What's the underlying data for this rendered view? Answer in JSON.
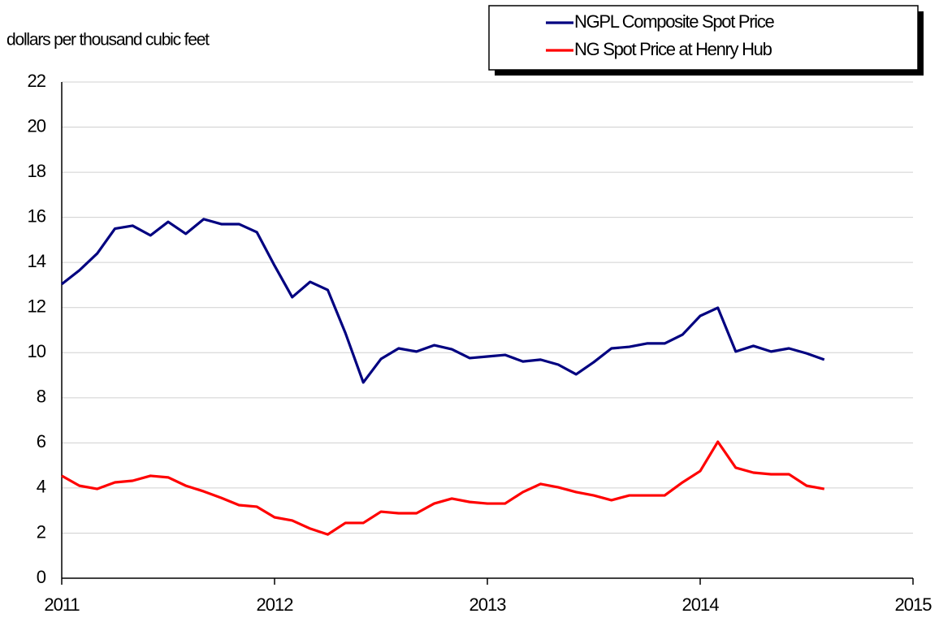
{
  "chart_data": {
    "type": "line",
    "y_label": "dollars per thousand cubic feet",
    "x": [
      2011,
      2011.083,
      2011.167,
      2011.25,
      2011.333,
      2011.417,
      2011.5,
      2011.583,
      2011.667,
      2011.75,
      2011.833,
      2011.917,
      2012,
      2012.083,
      2012.167,
      2012.25,
      2012.333,
      2012.417,
      2012.5,
      2012.583,
      2012.667,
      2012.75,
      2012.833,
      2012.917,
      2013,
      2013.083,
      2013.167,
      2013.25,
      2013.333,
      2013.417,
      2013.5,
      2013.583,
      2013.667,
      2013.75,
      2013.833,
      2013.917,
      2014,
      2014.083,
      2014.167,
      2014.25,
      2014.333,
      2014.417,
      2014.5,
      2014.583
    ],
    "series": [
      {
        "name": "NGPL Composite Spot Price",
        "color": "#000080",
        "values": [
          13.04,
          13.65,
          14.4,
          15.5,
          15.63,
          15.2,
          15.8,
          15.27,
          15.92,
          15.7,
          15.7,
          15.34,
          13.86,
          12.46,
          13.14,
          12.78,
          10.87,
          8.68,
          9.72,
          10.19,
          10.05,
          10.33,
          10.15,
          9.76,
          9.83,
          9.9,
          9.61,
          9.69,
          9.47,
          9.04,
          9.58,
          10.19,
          10.26,
          10.41,
          10.41,
          10.8,
          11.63,
          11.99,
          10.05,
          10.3,
          10.05,
          10.19,
          9.97,
          9.69
        ]
      },
      {
        "name": "NG Spot Price at Henry Hub",
        "color": "#ff0000",
        "values": [
          4.54,
          4.1,
          3.96,
          4.25,
          4.32,
          4.54,
          4.47,
          4.1,
          3.85,
          3.56,
          3.24,
          3.17,
          2.7,
          2.56,
          2.2,
          1.94,
          2.45,
          2.45,
          2.95,
          2.88,
          2.88,
          3.31,
          3.53,
          3.38,
          3.31,
          3.31,
          3.82,
          4.18,
          4.03,
          3.82,
          3.67,
          3.46,
          3.67,
          3.67,
          3.67,
          4.25,
          4.75,
          6.05,
          4.9,
          4.68,
          4.61,
          4.61,
          4.1,
          3.96
        ]
      }
    ],
    "xlim": [
      2011,
      2015
    ],
    "xticks": [
      2011,
      2012,
      2013,
      2014,
      2015
    ],
    "ylim": [
      0,
      22
    ],
    "yticks": [
      0,
      2,
      4,
      6,
      8,
      10,
      12,
      14,
      16,
      18,
      20,
      22
    ],
    "grid": true,
    "legend": "upper right"
  }
}
